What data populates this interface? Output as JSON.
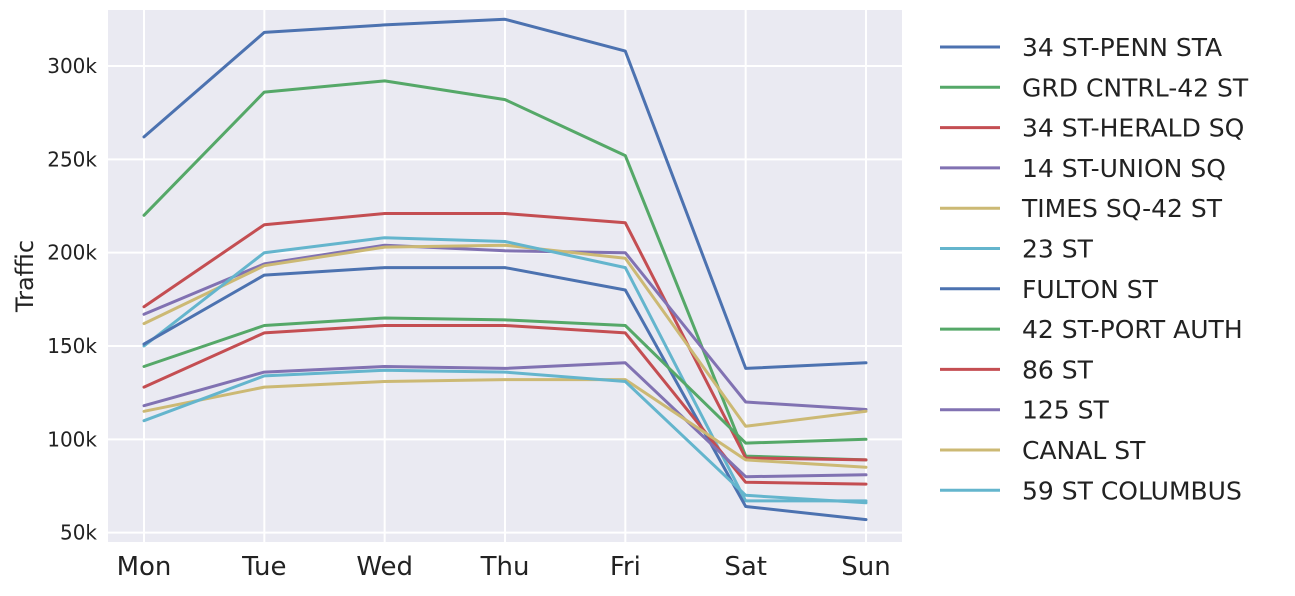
{
  "chart_data": {
    "type": "line",
    "title": "",
    "xlabel": "",
    "ylabel": "Traffic",
    "categories": [
      "Mon",
      "Tue",
      "Wed",
      "Thu",
      "Fri",
      "Sat",
      "Sun"
    ],
    "ylim": [
      45000,
      330000
    ],
    "yticks": [
      50000,
      100000,
      150000,
      200000,
      250000,
      300000
    ],
    "ytick_labels": [
      "50k",
      "100k",
      "150k",
      "200k",
      "250k",
      "300k"
    ],
    "grid": true,
    "legend_position": "outside-right",
    "series": [
      {
        "name": "34 ST-PENN STA",
        "color": "#4c72b0",
        "values": [
          262000,
          318000,
          322000,
          325000,
          308000,
          138000,
          141000
        ]
      },
      {
        "name": "GRD CNTRL-42 ST",
        "color": "#55a868",
        "values": [
          220000,
          286000,
          292000,
          282000,
          252000,
          91000,
          89000
        ]
      },
      {
        "name": "34 ST-HERALD SQ",
        "color": "#c44e52",
        "values": [
          171000,
          215000,
          221000,
          221000,
          216000,
          90000,
          89000
        ]
      },
      {
        "name": "14 ST-UNION SQ",
        "color": "#8172b2",
        "values": [
          167000,
          194000,
          204000,
          201000,
          200000,
          120000,
          116000
        ]
      },
      {
        "name": "TIMES SQ-42 ST",
        "color": "#ccb974",
        "values": [
          162000,
          193000,
          203000,
          204000,
          197000,
          107000,
          115000
        ]
      },
      {
        "name": "23 ST",
        "color": "#64b5cd",
        "values": [
          150000,
          200000,
          208000,
          206000,
          192000,
          67000,
          67000
        ]
      },
      {
        "name": "FULTON ST",
        "color": "#4c72b0",
        "values": [
          151000,
          188000,
          192000,
          192000,
          180000,
          64000,
          57000
        ]
      },
      {
        "name": "42 ST-PORT AUTH",
        "color": "#55a868",
        "values": [
          139000,
          161000,
          165000,
          164000,
          161000,
          98000,
          100000
        ]
      },
      {
        "name": "86 ST",
        "color": "#c44e52",
        "values": [
          128000,
          157000,
          161000,
          161000,
          157000,
          77000,
          76000
        ]
      },
      {
        "name": "125 ST",
        "color": "#8172b2",
        "values": [
          118000,
          136000,
          139000,
          138000,
          141000,
          80000,
          81000
        ]
      },
      {
        "name": "CANAL ST",
        "color": "#ccb974",
        "values": [
          115000,
          128000,
          131000,
          132000,
          132000,
          89000,
          85000
        ]
      },
      {
        "name": "59 ST COLUMBUS",
        "color": "#64b5cd",
        "values": [
          110000,
          134000,
          137000,
          136000,
          131000,
          70000,
          66000
        ]
      }
    ]
  }
}
